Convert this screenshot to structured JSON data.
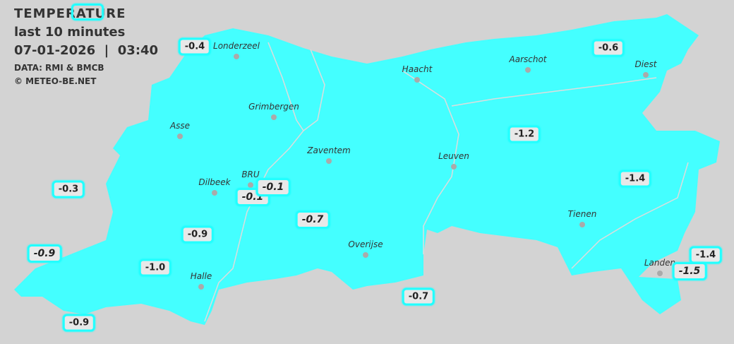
{
  "header": {
    "title": "TEMPERATURE",
    "subtitle": "last 10 minutes",
    "datetime": "07-01-2026  |  03:40",
    "source": "DATA: RMI & BMCB",
    "copyright": "© METEO-BE.NET"
  },
  "colors": {
    "map_fill": "#44ffff",
    "background": "#d3d3d3",
    "label_border": "#22ffff"
  },
  "cities": [
    {
      "name": "Londerzeel"
    },
    {
      "name": "Haacht"
    },
    {
      "name": "Aarschot"
    },
    {
      "name": "Diest"
    },
    {
      "name": "Grimbergen"
    },
    {
      "name": "Asse"
    },
    {
      "name": "Zaventem"
    },
    {
      "name": "Leuven"
    },
    {
      "name": "Dilbeek"
    },
    {
      "name": "BRU"
    },
    {
      "name": "Tienen"
    },
    {
      "name": "Overijse"
    },
    {
      "name": "Halle"
    },
    {
      "name": "Landen"
    }
  ],
  "readings": [
    {
      "value": ""
    },
    {
      "value": "-0.4"
    },
    {
      "value": "-0.6"
    },
    {
      "value": "-1.2"
    },
    {
      "value": "-1.4"
    },
    {
      "value": "-0.3"
    },
    {
      "value": "-0.1"
    },
    {
      "value": "-0.1"
    },
    {
      "value": "-0.7"
    },
    {
      "value": "-0.9"
    },
    {
      "value": "-0.9"
    },
    {
      "value": "-1.0"
    },
    {
      "value": "-0.7"
    },
    {
      "value": "-0.9"
    },
    {
      "value": "-1.4"
    },
    {
      "value": "-1.5"
    }
  ]
}
